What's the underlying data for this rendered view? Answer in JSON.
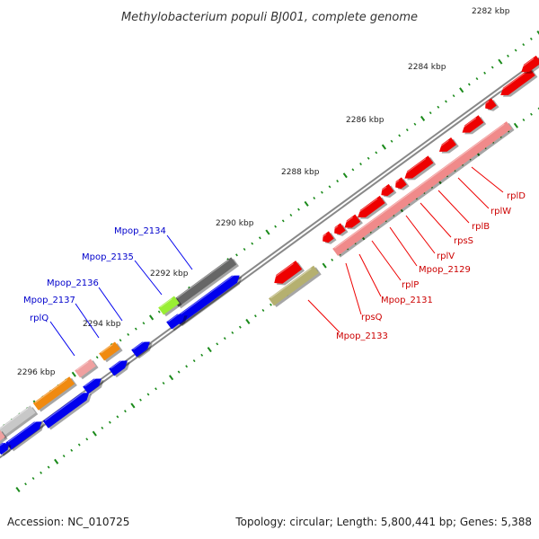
{
  "title": "Methylobacterium populi BJ001, complete genome",
  "footer": {
    "accession": "Accession: NC_010725",
    "summary": "Topology: circular; Length: 5,800,441 bp; Genes: 5,388"
  },
  "ruler": [
    "2282 kbp",
    "2284 kbp",
    "2286 kbp",
    "2288 kbp",
    "2290 kbp",
    "2292 kbp",
    "2294 kbp",
    "2296 kbp"
  ],
  "labels_left": [
    "Mpop_2134",
    "Mpop_2135",
    "Mpop_2136",
    "Mpop_2137",
    "rplQ"
  ],
  "labels_right": [
    "rplD",
    "rplW",
    "rplB",
    "rpsS",
    "rplV",
    "Mpop_2129",
    "rplP",
    "Mpop_2131",
    "rpsQ",
    "Mpop_2133"
  ],
  "colors": {
    "ribosomal": "#ee0000",
    "ribosomal_light": "#f08a8a",
    "blue": "#0000ee",
    "grey": "#666666",
    "light_grey": "#c8c8c8",
    "orange": "#f08a10",
    "pink": "#f0a0a0",
    "lime": "#99ee33",
    "olive": "#b5b070",
    "label_left": "#0000cc",
    "label_right": "#cc0000",
    "tick": "#1a8a1a"
  }
}
